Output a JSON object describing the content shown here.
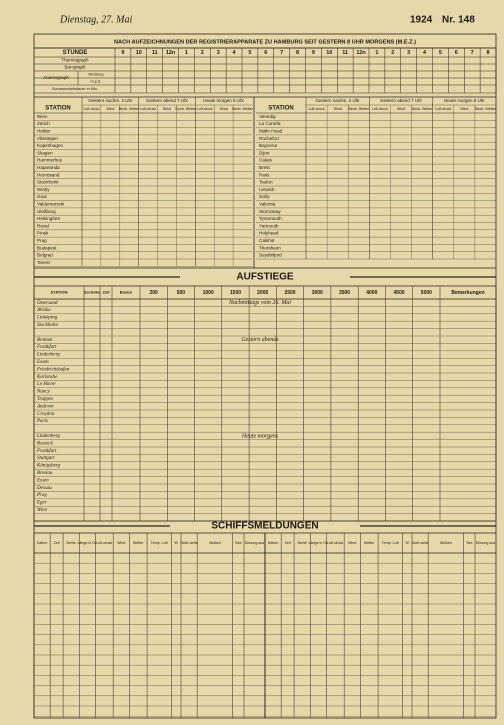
{
  "header": {
    "date": "Dienstag, 27. Mai",
    "year": "1924",
    "number": "Nr. 148",
    "title": "NACH AUFZEICHNUNGEN DER REGISTRIERAPPARATE ZU HAMBURG SEIT GESTERN 8 UHR MORGENS (M.E.Z.)"
  },
  "hourly": {
    "label": "STUNDE",
    "hours": [
      "9",
      "10",
      "11",
      "12n",
      "1",
      "2",
      "3",
      "4",
      "5",
      "6",
      "7",
      "8",
      "9",
      "10",
      "11",
      "12n",
      "1",
      "2",
      "3",
      "4",
      "5",
      "6",
      "7",
      "8"
    ],
    "rows": [
      "Thermograph",
      "Barograph",
      "Anemograph",
      "Sonnenscheindauer in Min."
    ],
    "anemo_sub": [
      "Richtung",
      "m.p.S."
    ]
  },
  "stations": {
    "label": "STATION",
    "groups": [
      "Gestern nachm. 2 Uhr",
      "Gestern abend 7 Uhr",
      "Heute morgen 8 Uhr"
    ],
    "sub": [
      "Luft-druck",
      "Wind",
      "Beob. Wetter"
    ],
    "left": [
      "Wien",
      "Zürich",
      "Helder",
      "Vlissingen",
      "Kopenhagen",
      "Skagen",
      "Hammerhus",
      "Haparanda",
      "Hernösand",
      "Stockholm",
      "Wisby",
      "Graz",
      "Valdemarsvik",
      "Uleåborg",
      "Helsingfors",
      "Reval",
      "Pinsk",
      "Prag",
      "Budapest",
      "Belgrad",
      "Tarent"
    ],
    "right": [
      "Venedig",
      "La Coruña",
      "Malin Head",
      "Rochefort",
      "Bayonne",
      "Dijon",
      "Calais",
      "Brest",
      "Paris",
      "Toulon",
      "Lerwick",
      "Scilly",
      "Valentia",
      "Stornoway",
      "Tynemouth",
      "Yarmouth",
      "Holyhead",
      "Calshot",
      "Thorshavn",
      "Seydisfjord"
    ]
  },
  "ascents": {
    "title": "AUFSTIEGE",
    "columns": [
      "STATION",
      "Seehöhe",
      "Zeit",
      "Boden",
      "200",
      "500",
      "1000",
      "1500",
      "2000",
      "2500",
      "3000",
      "3500",
      "4000",
      "4500",
      "5000",
      "Bemerkungen"
    ],
    "groups": [
      {
        "note": "Nachmittags vom 26. Mai",
        "stations": [
          "Östersund",
          "Abisko",
          "Linköping",
          "Stockholm"
        ]
      },
      {
        "note": "Gestern abends",
        "stations": [
          "Bremen",
          "Frankfurt",
          "Lindenberg",
          "Essen",
          "Friedrichshafen",
          "Karlsruhe",
          "Le Havre",
          "Nancy",
          "Trappes",
          "Andover",
          "Croydon",
          "Paris"
        ]
      },
      {
        "note": "Heute morgens",
        "stations": [
          "Lindenberg",
          "Rostock",
          "Frankfurt",
          "Stuttgart",
          "Königsberg",
          "Breslau",
          "Essen",
          "Dessau",
          "Prag",
          "Eger",
          "Wien"
        ]
      }
    ]
  },
  "ships": {
    "title": "SCHIFFSMELDUNGEN",
    "columns": [
      "Datum",
      "Zeit",
      "Breite",
      "Länge in Gr.",
      "Luft-druck",
      "Wind",
      "Wetter",
      "Temp. Luft",
      "W",
      "Sicht-weite",
      "Wolken",
      "See",
      "Dünung aus"
    ]
  }
}
